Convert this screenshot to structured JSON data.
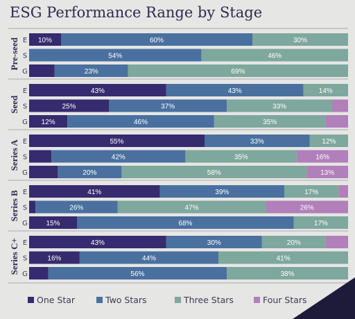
{
  "chart_data": {
    "type": "bar",
    "orientation": "horizontal",
    "stacked": true,
    "title": "ESG Performance Range by Stage",
    "xlim": [
      0,
      100
    ],
    "groups": [
      "Pre-seed",
      "Seed",
      "Series A",
      "Series B",
      "Series C+"
    ],
    "rows": [
      "E",
      "S",
      "G"
    ],
    "series_names": [
      "One Star",
      "Two Stars",
      "Three Stars",
      "Four Stars"
    ],
    "colors": [
      "#352b6e",
      "#49709f",
      "#7ea79d",
      "#b17fba"
    ],
    "data": [
      [
        [
          10,
          60,
          30,
          0
        ],
        [
          0,
          54,
          46,
          0
        ],
        [
          8,
          23,
          69,
          0
        ]
      ],
      [
        [
          43,
          43,
          14,
          0
        ],
        [
          25,
          37,
          33,
          5
        ],
        [
          12,
          46,
          35,
          7
        ]
      ],
      [
        [
          55,
          33,
          12,
          0
        ],
        [
          7,
          42,
          35,
          16
        ],
        [
          9,
          20,
          58,
          13
        ]
      ],
      [
        [
          41,
          39,
          17,
          3
        ],
        [
          2,
          26,
          47,
          26
        ],
        [
          15,
          68,
          17,
          0
        ]
      ],
      [
        [
          43,
          30,
          20,
          7
        ],
        [
          16,
          44,
          41,
          0
        ],
        [
          6,
          56,
          38,
          0
        ]
      ]
    ],
    "data_labels": [
      [
        [
          "10%",
          "60%",
          "30%",
          ""
        ],
        [
          "",
          "54%",
          "46%",
          ""
        ],
        [
          "",
          "23%",
          "69%",
          ""
        ]
      ],
      [
        [
          "43%",
          "43%",
          "14%",
          ""
        ],
        [
          "25%",
          "37%",
          "33%",
          ""
        ],
        [
          "12%",
          "46%",
          "35%",
          ""
        ]
      ],
      [
        [
          "55%",
          "33%",
          "12%",
          ""
        ],
        [
          "",
          "42%",
          "35%",
          "16%"
        ],
        [
          "",
          "20%",
          "58%",
          "13%"
        ]
      ],
      [
        [
          "41%",
          "39%",
          "17%",
          ""
        ],
        [
          "",
          "26%",
          "47%",
          "26%"
        ],
        [
          "15%",
          "68%",
          "17%",
          ""
        ]
      ],
      [
        [
          "43%",
          "30%",
          "20%",
          ""
        ],
        [
          "16%",
          "44%",
          "41%",
          ""
        ],
        [
          "",
          "56%",
          "38%",
          ""
        ]
      ]
    ],
    "legend": [
      "One Star",
      "Two Stars",
      "Three Stars",
      "Four Stars"
    ],
    "legend_position": "bottom"
  }
}
